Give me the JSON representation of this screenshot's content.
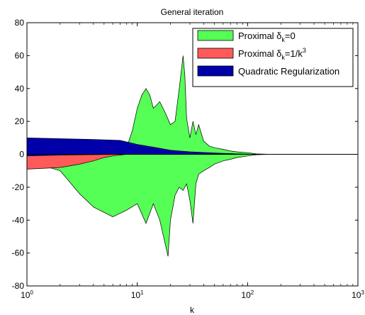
{
  "chart_data": {
    "type": "area",
    "title": "General iteration",
    "xlabel": "k",
    "ylabel": "",
    "xscale": "log",
    "xlim": [
      1,
      1000
    ],
    "ylim": [
      -80,
      80
    ],
    "xticks": [
      1,
      10,
      100,
      1000
    ],
    "xtick_labels": [
      {
        "base": "10",
        "exp": "0"
      },
      {
        "base": "10",
        "exp": "1"
      },
      {
        "base": "10",
        "exp": "2"
      },
      {
        "base": "10",
        "exp": "3"
      }
    ],
    "yticks": [
      -80,
      -60,
      -40,
      -20,
      0,
      20,
      40,
      60,
      80
    ],
    "ytick_labels": [
      "-80",
      "-60",
      "-40",
      "-20",
      "0",
      "20",
      "40",
      "60",
      "80"
    ],
    "grid": false,
    "legend_position": "top-right",
    "series": [
      {
        "name": "Proximal δ_k=0",
        "legend_parts": [
          "Proximal δ",
          "k",
          "=0",
          ""
        ],
        "color": "#55ff55",
        "upper": [
          [
            1,
            5
          ],
          [
            2,
            3
          ],
          [
            4,
            1
          ],
          [
            6,
            2
          ],
          [
            8,
            4
          ],
          [
            9,
            14
          ],
          [
            10,
            28
          ],
          [
            11,
            36
          ],
          [
            12,
            40
          ],
          [
            13,
            36
          ],
          [
            14,
            28
          ],
          [
            16,
            32
          ],
          [
            18,
            25
          ],
          [
            20,
            18
          ],
          [
            22,
            20
          ],
          [
            24,
            40
          ],
          [
            26,
            60
          ],
          [
            27,
            48
          ],
          [
            28,
            22
          ],
          [
            30,
            10
          ],
          [
            32,
            20
          ],
          [
            34,
            12
          ],
          [
            36,
            18
          ],
          [
            40,
            8
          ],
          [
            45,
            5
          ],
          [
            50,
            4
          ],
          [
            60,
            3
          ],
          [
            70,
            2
          ],
          [
            80,
            1.5
          ],
          [
            100,
            1
          ],
          [
            120,
            0.3
          ],
          [
            150,
            0.1
          ],
          [
            1000,
            0
          ]
        ],
        "lower": [
          [
            1,
            -4
          ],
          [
            2,
            -10
          ],
          [
            3,
            -24
          ],
          [
            4,
            -32
          ],
          [
            6,
            -38
          ],
          [
            8,
            -34
          ],
          [
            10,
            -30
          ],
          [
            12,
            -42
          ],
          [
            14,
            -30
          ],
          [
            16,
            -40
          ],
          [
            18,
            -55
          ],
          [
            19,
            -62
          ],
          [
            20,
            -40
          ],
          [
            22,
            -25
          ],
          [
            24,
            -20
          ],
          [
            26,
            -22
          ],
          [
            28,
            -18
          ],
          [
            30,
            -28
          ],
          [
            32,
            -42
          ],
          [
            34,
            -18
          ],
          [
            36,
            -12
          ],
          [
            40,
            -10
          ],
          [
            45,
            -8
          ],
          [
            50,
            -6
          ],
          [
            60,
            -4
          ],
          [
            70,
            -3
          ],
          [
            80,
            -2
          ],
          [
            100,
            -1
          ],
          [
            120,
            -0.3
          ],
          [
            150,
            -0.1
          ],
          [
            1000,
            0
          ]
        ]
      },
      {
        "name": "Proximal δ_k=1/k^3",
        "legend_parts": [
          "Proximal δ",
          "k",
          "=1/k",
          "3"
        ],
        "color": "#ff5a5a",
        "upper": [
          [
            1,
            3
          ],
          [
            2,
            2
          ],
          [
            3,
            1
          ],
          [
            4,
            0.5
          ],
          [
            6,
            0
          ],
          [
            8,
            0
          ],
          [
            1000,
            0
          ]
        ],
        "lower": [
          [
            1,
            -9
          ],
          [
            2,
            -8
          ],
          [
            3,
            -6
          ],
          [
            4,
            -4
          ],
          [
            5,
            -2
          ],
          [
            6,
            -1
          ],
          [
            8,
            0
          ],
          [
            1000,
            0
          ]
        ]
      },
      {
        "name": "Quadratic Regularization",
        "legend_parts": [
          "Quadratic Regularization",
          "",
          "",
          ""
        ],
        "color": "#0000aa",
        "upper": [
          [
            1,
            10
          ],
          [
            2,
            9.5
          ],
          [
            4,
            9
          ],
          [
            7,
            8.5
          ],
          [
            10,
            6
          ],
          [
            15,
            4
          ],
          [
            20,
            2.5
          ],
          [
            30,
            1.5
          ],
          [
            50,
            0.8
          ],
          [
            80,
            0.3
          ],
          [
            120,
            0.1
          ],
          [
            200,
            0
          ],
          [
            1000,
            0
          ]
        ],
        "lower": [
          [
            1,
            -1
          ],
          [
            2,
            -0.5
          ],
          [
            4,
            -0.2
          ],
          [
            7,
            0
          ],
          [
            1000,
            0
          ]
        ]
      }
    ]
  }
}
